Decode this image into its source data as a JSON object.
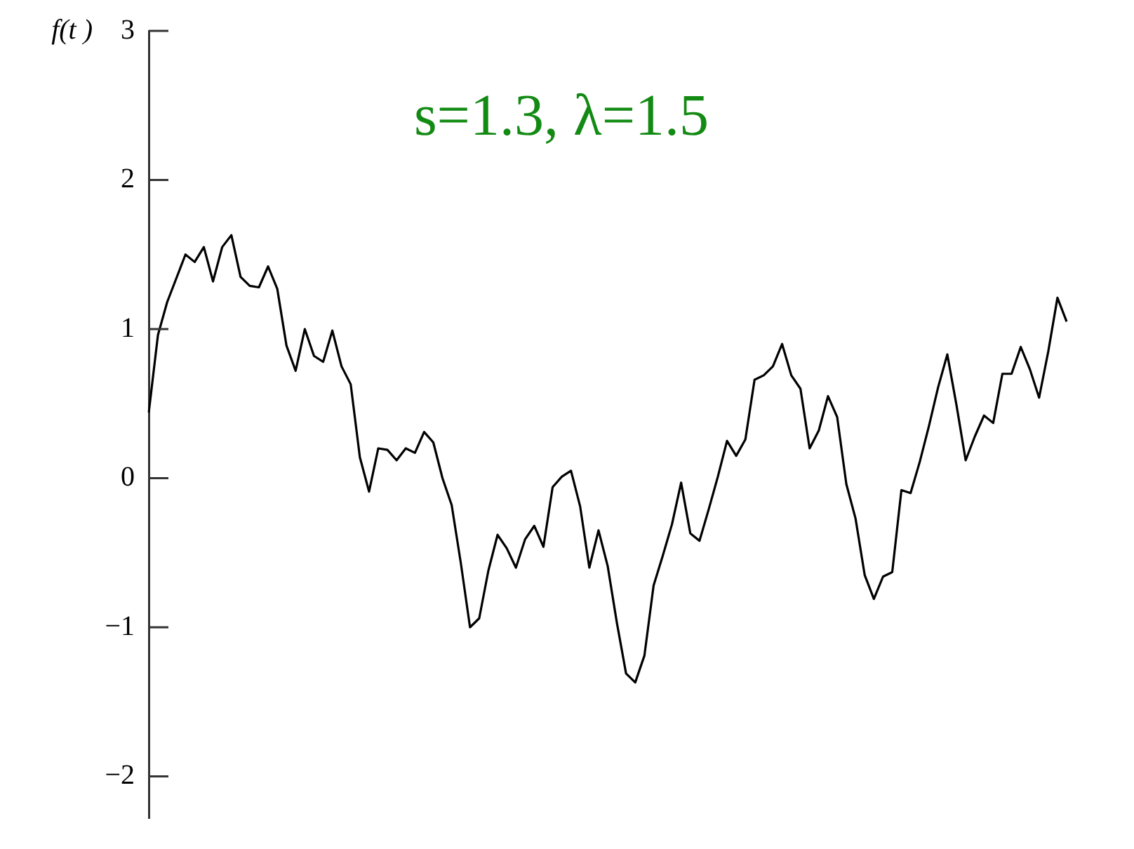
{
  "chart_data": {
    "type": "line",
    "title": "s=1.3, λ=1.5",
    "ylabel": "f(t )",
    "categories": [
      null,
      null,
      null,
      null,
      null,
      null,
      null,
      null,
      null,
      null,
      null,
      null,
      null,
      null,
      null,
      null,
      null,
      null,
      null,
      null,
      null,
      null,
      null,
      null,
      null,
      null,
      null,
      null,
      null,
      null,
      null,
      null,
      null,
      null,
      null,
      null,
      null,
      null,
      null,
      null,
      null,
      null,
      null,
      null,
      null,
      null,
      null,
      null,
      null,
      null,
      null,
      null,
      null,
      null,
      null,
      null,
      null,
      null,
      null,
      null,
      null,
      null,
      null,
      null,
      null,
      null,
      null,
      null,
      null,
      null,
      null,
      null,
      null,
      null,
      null,
      null,
      null,
      null,
      null,
      null,
      null,
      null,
      null,
      null,
      null,
      null,
      null,
      null,
      null,
      null,
      null,
      null,
      null,
      null,
      null,
      null,
      null,
      null,
      null,
      null,
      null
    ],
    "series": [
      {
        "color": "#000000",
        "values": [
          0.44,
          0.96,
          1.18,
          1.34,
          1.5,
          1.45,
          1.55,
          1.32,
          1.55,
          1.63,
          1.35,
          1.29,
          1.28,
          1.42,
          1.27,
          0.89,
          0.72,
          1.0,
          0.82,
          0.78,
          0.99,
          0.75,
          0.63,
          0.14,
          -0.09,
          0.2,
          0.19,
          0.12,
          0.2,
          0.17,
          0.31,
          0.24,
          0.0,
          -0.18,
          -0.57,
          -1.0,
          -0.94,
          -0.62,
          -0.38,
          -0.47,
          -0.6,
          -0.41,
          -0.32,
          -0.46,
          -0.06,
          0.01,
          0.05,
          -0.19,
          -0.6,
          -0.35,
          -0.59,
          -0.97,
          -1.31,
          -1.37,
          -1.19,
          -0.72,
          -0.52,
          -0.31,
          -0.03,
          -0.37,
          -0.42,
          -0.21,
          0.01,
          0.25,
          0.15,
          0.26,
          0.66,
          0.69,
          0.75,
          0.9,
          0.69,
          0.6,
          0.2,
          0.32,
          0.55,
          0.41,
          -0.04,
          -0.27,
          -0.65,
          -0.81,
          -0.66,
          -0.63,
          -0.08,
          -0.1,
          0.11,
          0.35,
          0.61,
          0.83,
          0.49,
          0.12,
          0.28,
          0.42,
          0.37,
          0.7,
          0.7,
          0.88,
          0.73,
          0.54,
          0.85,
          1.21,
          1.05
        ]
      }
    ],
    "ylim": [
      -2.28,
      3
    ],
    "yticks": [
      {
        "value": -2,
        "label": "−2"
      },
      {
        "value": -1,
        "label": "−1"
      },
      0,
      1,
      2,
      3
    ],
    "grid": false,
    "legend": false,
    "marker": "none",
    "line_style": "solid",
    "tick_labels": "y"
  }
}
